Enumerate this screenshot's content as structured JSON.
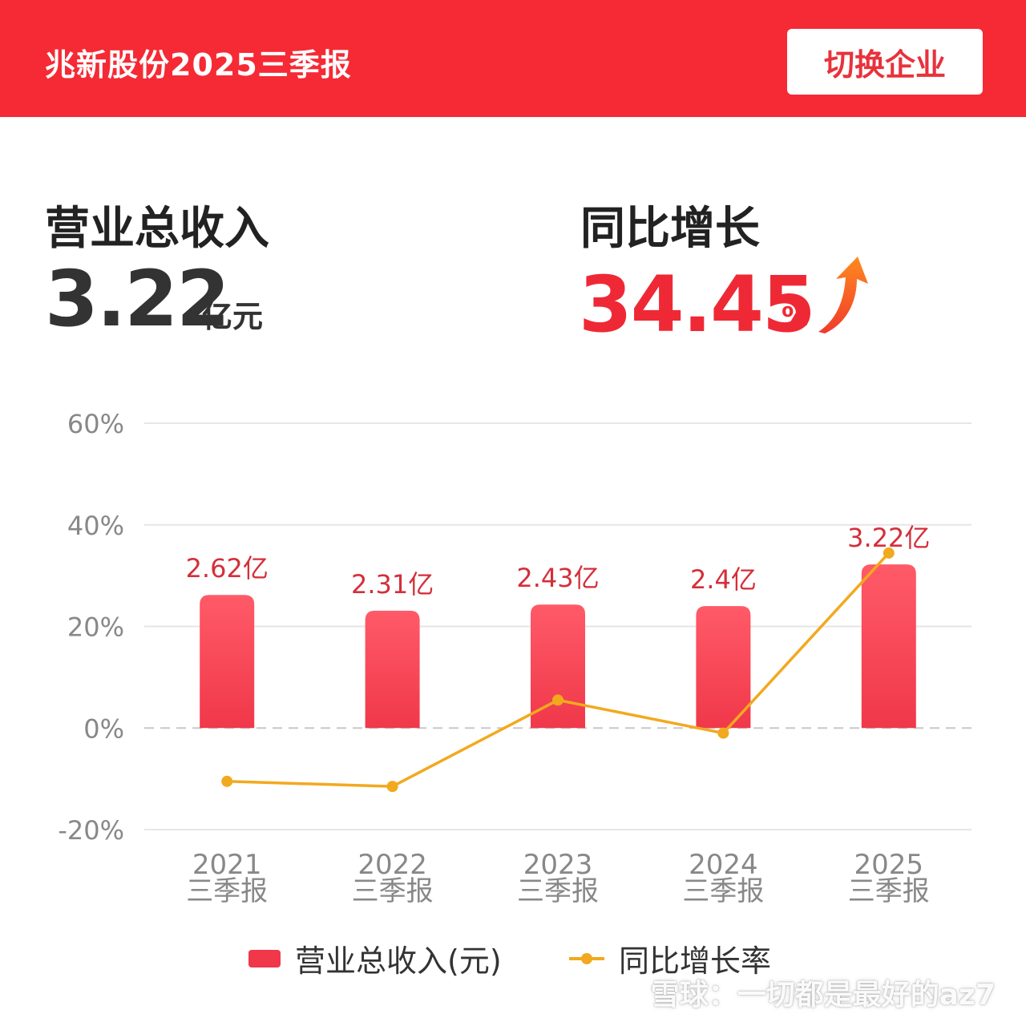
{
  "header": {
    "title": "兆新股份2025三季报",
    "switch_label": "切换企业"
  },
  "metrics": {
    "revenue_label": "营业总收入",
    "revenue_value": "3.22",
    "revenue_unit": "亿元",
    "growth_label": "同比增长",
    "growth_value": "34.45",
    "growth_unit": "%",
    "growth_icon": "up-arrow-icon"
  },
  "colors": {
    "header_bg": "#f52a35",
    "bar": "#f0384a",
    "line": "#f2a91e",
    "growth_text": "#ee2935"
  },
  "chart_data": {
    "type": "bar",
    "categories": [
      "2021\n三季报",
      "2022\n三季报",
      "2023\n三季报",
      "2024\n三季报",
      "2025\n三季报"
    ],
    "category_year": [
      "2021",
      "2022",
      "2023",
      "2024",
      "2025"
    ],
    "category_period": "三季报",
    "series": [
      {
        "name": "营业总收入(元)",
        "type": "bar",
        "values": [
          2.62,
          2.31,
          2.43,
          2.4,
          3.22
        ],
        "data_labels": [
          "2.62亿",
          "2.31亿",
          "2.43亿",
          "2.4亿",
          "3.22亿"
        ]
      },
      {
        "name": "同比增长率",
        "type": "line",
        "values": [
          -10.5,
          -11.5,
          5.5,
          -1.0,
          34.45
        ]
      }
    ],
    "y_axis": {
      "ticks": [
        60,
        40,
        20,
        0,
        -20
      ],
      "tick_labels": [
        "60%",
        "40%",
        "20%",
        "0%",
        "-20%"
      ],
      "ylim": [
        -20,
        60
      ]
    },
    "grid": true,
    "legend_position": "bottom"
  },
  "legend": {
    "bar_label": "营业总收入(元)",
    "line_label": "同比增长率"
  },
  "watermark": "雪球：一切都是最好的az7"
}
